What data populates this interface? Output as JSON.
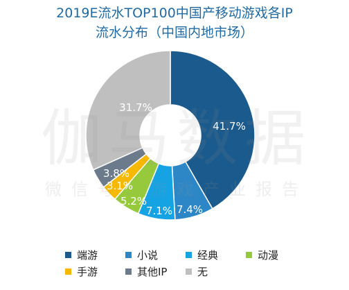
{
  "title_line1": "2019E流水TOP100中国产移动游戏各IP",
  "title_line2": "流水分布（中国内地市场）",
  "watermark": {
    "main": "伽马数据",
    "sub": "微信号：游戏产业报告"
  },
  "chart_data": {
    "type": "pie",
    "donut": true,
    "title": "2019E流水TOP100中国产移动游戏各IP流水分布（中国内地市场）",
    "unit": "%",
    "series": [
      {
        "name": "端游",
        "value": 41.7,
        "label": "41.7%",
        "color": "#1b5a8c"
      },
      {
        "name": "小说",
        "value": 7.4,
        "label": "7.4%",
        "color": "#2d87c6"
      },
      {
        "name": "经典",
        "value": 7.1,
        "label": "7.1%",
        "color": "#16a3e4"
      },
      {
        "name": "动漫",
        "value": 5.2,
        "label": "5.2%",
        "color": "#97c93c"
      },
      {
        "name": "手游",
        "value": 3.1,
        "label": "3.1%",
        "color": "#f7b800"
      },
      {
        "name": "其他IP",
        "value": 3.8,
        "label": "3.8%",
        "color": "#6b7b8c"
      },
      {
        "name": "无",
        "value": 31.7,
        "label": "31.7%",
        "color": "#bfbfbf"
      }
    ],
    "legend_position": "bottom"
  }
}
